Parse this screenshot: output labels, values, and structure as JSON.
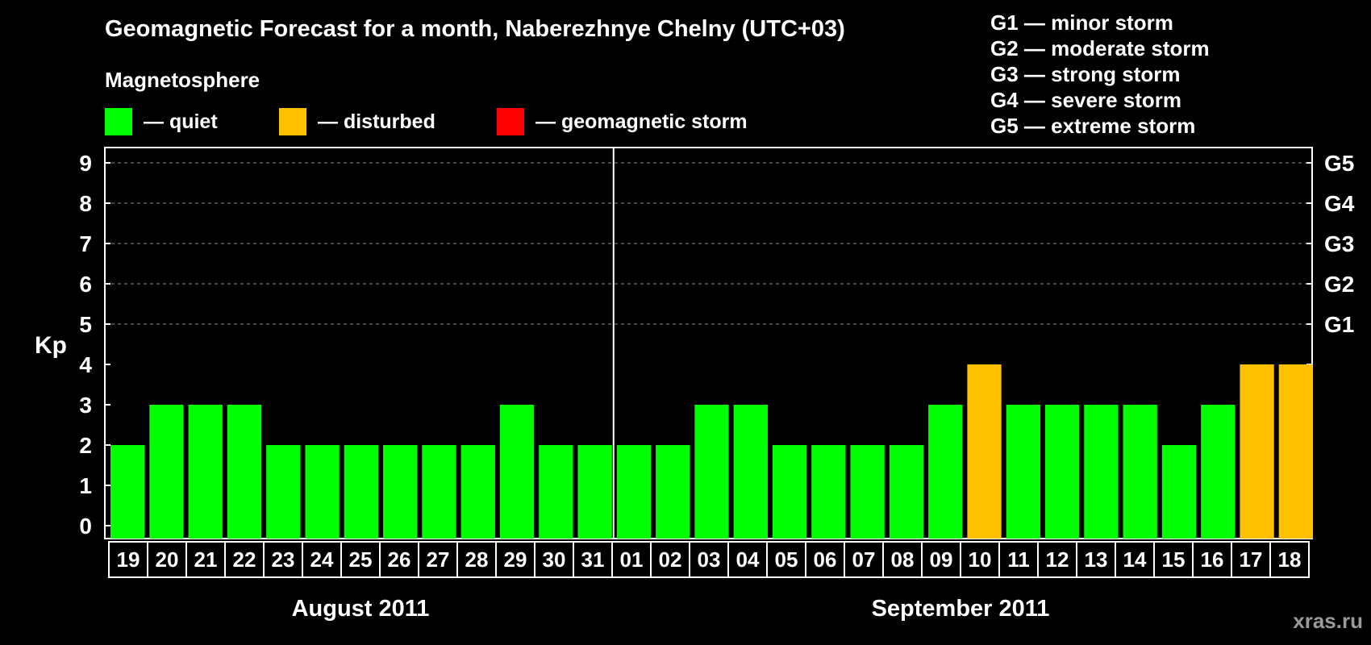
{
  "title": "Geomagnetic Forecast for a month, Naberezhnye Chelny (UTC+03)",
  "legend": {
    "heading": "Magnetosphere",
    "items": [
      {
        "label": "— quiet",
        "color": "#00ff00"
      },
      {
        "label": "— disturbed",
        "color": "#ffc000"
      },
      {
        "label": "— geomagnetic storm",
        "color": "#ff0000"
      }
    ]
  },
  "storm_levels": [
    "G1 — minor storm",
    "G2 — moderate storm",
    "G3 — strong storm",
    "G4 — severe storm",
    "G5 — extreme storm"
  ],
  "watermark": "xras.ru",
  "chart_data": {
    "type": "bar",
    "ylabel": "Kp",
    "ylim": [
      0,
      9
    ],
    "yticks": [
      "0",
      "1",
      "2",
      "3",
      "4",
      "5",
      "6",
      "7",
      "8",
      "9"
    ],
    "right_ticks": [
      {
        "value": 5,
        "label": "G1"
      },
      {
        "value": 6,
        "label": "G2"
      },
      {
        "value": 7,
        "label": "G3"
      },
      {
        "value": 8,
        "label": "G4"
      },
      {
        "value": 9,
        "label": "G5"
      }
    ],
    "grid": "dashed horizontal lines at 5, 6, 7, 8, 9",
    "categories": [
      "19",
      "20",
      "21",
      "22",
      "23",
      "24",
      "25",
      "26",
      "27",
      "28",
      "29",
      "30",
      "31",
      "01",
      "02",
      "03",
      "04",
      "05",
      "06",
      "07",
      "08",
      "09",
      "10",
      "11",
      "12",
      "13",
      "14",
      "15",
      "16",
      "17",
      "18"
    ],
    "values": [
      2,
      3,
      3,
      3,
      2,
      2,
      2,
      2,
      2,
      2,
      3,
      2,
      2,
      2,
      2,
      3,
      3,
      2,
      2,
      2,
      2,
      3,
      4,
      3,
      3,
      3,
      3,
      2,
      3,
      4,
      4
    ],
    "status": [
      "quiet",
      "quiet",
      "quiet",
      "quiet",
      "quiet",
      "quiet",
      "quiet",
      "quiet",
      "quiet",
      "quiet",
      "quiet",
      "quiet",
      "quiet",
      "quiet",
      "quiet",
      "quiet",
      "quiet",
      "quiet",
      "quiet",
      "quiet",
      "quiet",
      "quiet",
      "disturbed",
      "quiet",
      "quiet",
      "quiet",
      "quiet",
      "quiet",
      "quiet",
      "disturbed",
      "disturbed"
    ],
    "status_colors": {
      "quiet": "#00ff00",
      "disturbed": "#ffc000",
      "storm": "#ff0000"
    },
    "months": [
      {
        "label": "August 2011",
        "count": 13
      },
      {
        "label": "September 2011",
        "count": 18
      }
    ]
  }
}
